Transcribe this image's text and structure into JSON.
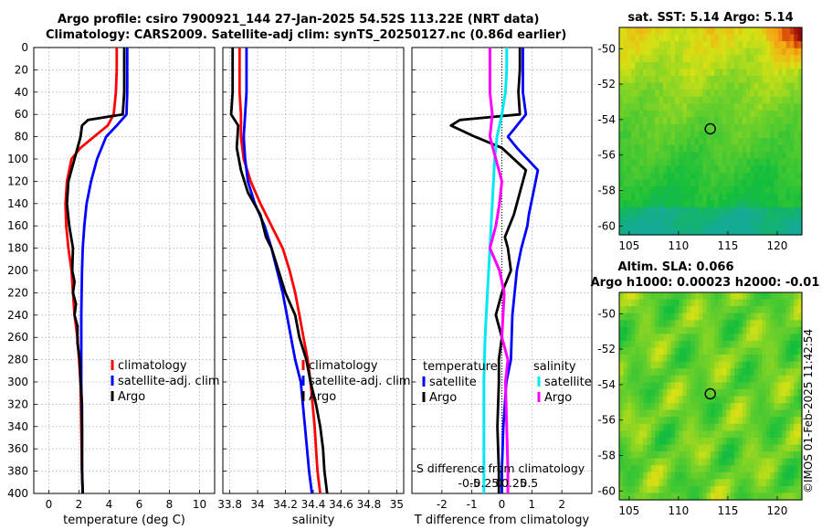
{
  "header": {
    "line1": "Argo profile: csiro 7900921_144 27-Jan-2025 54.52S 113.22E (NRT data)",
    "line2": "Climatology: CARS2009. Satellite-adj clim: synTS_20250127.nc (0.86d earlier)"
  },
  "colors": {
    "climatology": "#ff0000",
    "satellite": "#0000ff",
    "argo": "#000000",
    "sat_salinity": "#00e8f0",
    "argo_salinity": "#ff00ff",
    "grid": "#b0b0b0"
  },
  "chart_data": [
    {
      "type": "line",
      "id": "temperature",
      "xlabel": "temperature (deg C)",
      "xlim": [
        -1,
        11
      ],
      "xticks": [
        0,
        2,
        4,
        6,
        8,
        10
      ],
      "ylim": [
        0,
        400
      ],
      "yticks": [
        0,
        20,
        40,
        60,
        80,
        100,
        120,
        140,
        160,
        180,
        200,
        220,
        240,
        260,
        280,
        300,
        320,
        340,
        360,
        380,
        400
      ],
      "legend": [
        "climatology",
        "satellite-adj. clim",
        "Argo"
      ],
      "series": [
        {
          "name": "climatology",
          "color": "#ff0000",
          "x": [
            4.5,
            4.5,
            4.45,
            4.3,
            3.9,
            3.0,
            2.1,
            1.5,
            1.2,
            1.1,
            1.15,
            1.3,
            1.5,
            1.6,
            1.7,
            1.9,
            2.0,
            2.1,
            2.15,
            2.2,
            2.25
          ],
          "y": [
            0,
            20,
            40,
            60,
            70,
            80,
            90,
            100,
            120,
            140,
            160,
            180,
            200,
            220,
            240,
            260,
            280,
            300,
            340,
            380,
            400
          ]
        },
        {
          "name": "satellite-adj. clim",
          "color": "#0000ff",
          "x": [
            5.2,
            5.2,
            5.2,
            5.15,
            4.5,
            3.8,
            3.2,
            2.8,
            2.5,
            2.35,
            2.25,
            2.2,
            2.15,
            2.15,
            2.15,
            2.2,
            2.2,
            2.25
          ],
          "y": [
            0,
            20,
            40,
            60,
            70,
            80,
            100,
            120,
            140,
            160,
            180,
            200,
            240,
            280,
            300,
            340,
            380,
            400
          ]
        },
        {
          "name": "Argo",
          "color": "#000000",
          "x": [
            5.0,
            5.0,
            5.0,
            4.9,
            2.6,
            2.2,
            2.1,
            1.7,
            1.3,
            1.2,
            1.35,
            1.6,
            1.55,
            1.7,
            1.6,
            1.8,
            1.7,
            1.9,
            1.9,
            2.05,
            2.1,
            2.2,
            2.2,
            2.2,
            2.25
          ],
          "y": [
            0,
            20,
            40,
            60,
            65,
            70,
            80,
            100,
            120,
            140,
            160,
            180,
            200,
            210,
            220,
            230,
            240,
            250,
            265,
            280,
            300,
            320,
            350,
            380,
            400
          ]
        }
      ]
    },
    {
      "type": "line",
      "id": "salinity",
      "xlabel": "salinity",
      "xlim": [
        33.75,
        35.05
      ],
      "xticks": [
        33.8,
        34,
        34.2,
        34.4,
        34.6,
        34.8,
        35
      ],
      "xtick_labels": [
        "33.8",
        "34",
        "34.2",
        "34.4",
        "34.6",
        "34.8",
        "35"
      ],
      "ylim": [
        0,
        400
      ],
      "legend": [
        "climatology",
        "satellite-adj. clim",
        "Argo"
      ],
      "series": [
        {
          "name": "climatology",
          "color": "#ff0000",
          "x": [
            33.87,
            33.87,
            33.87,
            33.88,
            33.88,
            33.9,
            33.95,
            34.02,
            34.1,
            34.18,
            34.23,
            34.27,
            34.3,
            34.33,
            34.36,
            34.38,
            34.41,
            34.43,
            34.45
          ],
          "y": [
            0,
            20,
            40,
            60,
            80,
            100,
            120,
            140,
            160,
            180,
            200,
            220,
            240,
            260,
            280,
            300,
            340,
            380,
            400
          ]
        },
        {
          "name": "satellite-adj. clim",
          "color": "#0000ff",
          "x": [
            33.92,
            33.92,
            33.92,
            33.91,
            33.9,
            33.91,
            33.93,
            33.98,
            34.05,
            34.1,
            34.14,
            34.18,
            34.21,
            34.24,
            34.27,
            34.31,
            34.34,
            34.37,
            34.39
          ],
          "y": [
            0,
            20,
            40,
            60,
            80,
            100,
            120,
            140,
            160,
            180,
            200,
            220,
            240,
            260,
            280,
            300,
            340,
            380,
            400
          ]
        },
        {
          "name": "Argo",
          "color": "#000000",
          "x": [
            33.82,
            33.82,
            33.82,
            33.81,
            33.86,
            33.85,
            33.88,
            33.93,
            34.02,
            34.06,
            34.1,
            34.15,
            34.2,
            34.27,
            34.3,
            34.35,
            34.38,
            34.42,
            34.45,
            34.47,
            34.48,
            34.5
          ],
          "y": [
            0,
            20,
            40,
            60,
            70,
            90,
            110,
            130,
            150,
            170,
            180,
            200,
            220,
            240,
            260,
            280,
            300,
            320,
            340,
            360,
            380,
            400
          ]
        }
      ]
    },
    {
      "type": "line",
      "id": "differences",
      "xlabel": "T difference from climatology",
      "xlim": [
        -3,
        3
      ],
      "xticks": [
        -2,
        -1,
        0,
        1,
        2
      ],
      "xtick_labels": [
        "-2",
        "-1",
        "0",
        "1",
        "2"
      ],
      "top_axis_label": "S difference from climatology",
      "top_ticks": [
        "-0.5",
        "-0.25",
        "0",
        "0.25",
        "0.5"
      ],
      "ylim": [
        0,
        400
      ],
      "legend_temperature_title": "temperature",
      "legend_salinity_title": "salinity",
      "legend": [
        "satellite",
        "Argo",
        "satellite",
        "Argo"
      ],
      "series": [
        {
          "name": "temperature satellite",
          "color": "#0000ff",
          "x": [
            0.7,
            0.7,
            0.7,
            0.8,
            0.2,
            0.5,
            1.2,
            1.05,
            0.9,
            0.85,
            0.65,
            0.5,
            0.35,
            0.3,
            0.15,
            0.05,
            0.0,
            0.0
          ],
          "y": [
            0,
            20,
            40,
            60,
            80,
            90,
            110,
            130,
            150,
            160,
            180,
            200,
            240,
            280,
            300,
            340,
            380,
            400
          ]
        },
        {
          "name": "temperature Argo",
          "color": "#000000",
          "x": [
            0.6,
            0.6,
            0.55,
            0.6,
            -1.4,
            -1.7,
            -0.9,
            0.0,
            0.8,
            0.4,
            0.1,
            0.2,
            0.3,
            0.0,
            -0.2,
            0.0,
            -0.1,
            -0.1,
            -0.15,
            -0.1,
            -0.1
          ],
          "y": [
            0,
            20,
            40,
            60,
            65,
            70,
            80,
            90,
            110,
            150,
            170,
            180,
            200,
            220,
            240,
            260,
            280,
            300,
            340,
            380,
            400
          ]
        },
        {
          "name": "salinity satellite",
          "color": "#00e8f0",
          "x": [
            0.04,
            0.04,
            0.03,
            0.0,
            -0.04,
            -0.06,
            -0.08,
            -0.1,
            -0.12,
            -0.14,
            -0.15,
            -0.15,
            -0.15
          ],
          "y": [
            0,
            20,
            40,
            60,
            80,
            100,
            140,
            180,
            220,
            260,
            300,
            360,
            400
          ]
        },
        {
          "name": "salinity Argo",
          "color": "#ff00ff",
          "x": [
            -0.1,
            -0.1,
            -0.1,
            -0.08,
            -0.1,
            -0.05,
            0.0,
            -0.02,
            -0.05,
            -0.1,
            -0.02,
            0.02,
            0.0,
            0.05,
            0.03,
            0.04,
            0.05,
            0.05
          ],
          "y": [
            0,
            20,
            40,
            60,
            80,
            100,
            120,
            140,
            160,
            180,
            200,
            220,
            260,
            280,
            300,
            340,
            380,
            400
          ]
        }
      ]
    },
    {
      "type": "heatmap",
      "id": "sst-map",
      "title": "sat. SST: 5.14 Argo: 5.14",
      "xticks": [
        105,
        110,
        115,
        120
      ],
      "yticks": [
        -50,
        -52,
        -54,
        -56,
        -58,
        -60
      ],
      "xlim": [
        104,
        122.5
      ],
      "ylim": [
        -60.5,
        -48.8
      ],
      "argo_position": [
        113.22,
        -54.52
      ]
    },
    {
      "type": "heatmap",
      "id": "sla-map",
      "title": "Altim. SLA: 0.066",
      "subtitle": "Argo h1000: 0.00023 h2000: -0.01",
      "xticks": [
        105,
        110,
        115,
        120
      ],
      "yticks": [
        -50,
        -52,
        -54,
        -56,
        -58,
        -60
      ],
      "xlim": [
        104,
        122.5
      ],
      "ylim": [
        -60.5,
        -48.8
      ],
      "argo_position": [
        113.22,
        -54.52
      ]
    }
  ],
  "footer": {
    "credit": "©IMOS 01-Feb-2025 11:42:54"
  }
}
